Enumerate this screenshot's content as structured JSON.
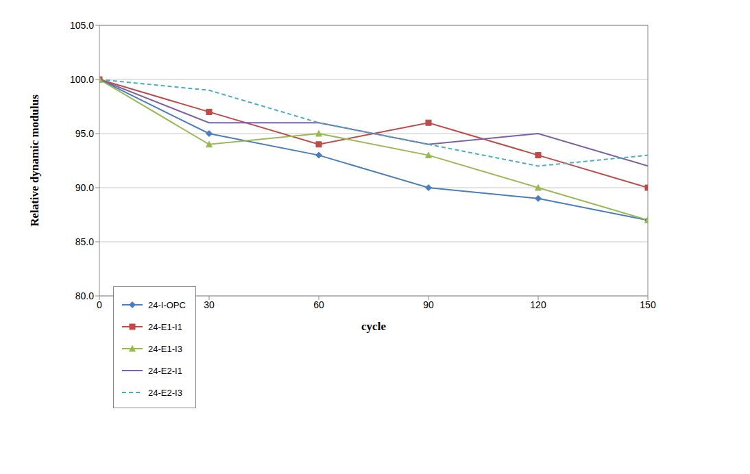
{
  "chart_data": {
    "type": "line",
    "x_label": "cycle",
    "y_label": "Relative dynamic modulus",
    "x": [
      0,
      30,
      60,
      90,
      120,
      150
    ],
    "series": [
      {
        "name": "24-I-OPC",
        "color": "#4a7ebb",
        "marker": "diamond",
        "line_style": "solid",
        "values": [
          100,
          95,
          93,
          90,
          89,
          87
        ]
      },
      {
        "name": "24-E1-I1",
        "color": "#be4b48",
        "marker": "square",
        "line_style": "solid",
        "values": [
          100,
          97,
          94,
          96,
          93,
          90
        ]
      },
      {
        "name": "24-E1-I3",
        "color": "#98b954",
        "marker": "triangle",
        "line_style": "solid",
        "values": [
          100,
          94,
          95,
          93,
          90,
          87
        ]
      },
      {
        "name": "24-E2-I1",
        "color": "#7d60a0",
        "marker": "none",
        "line_style": "solid",
        "values": [
          100,
          96,
          96,
          94,
          95,
          92
        ]
      },
      {
        "name": "24-E2-I3",
        "color": "#4bacc6",
        "marker": "none",
        "line_style": "dashed",
        "values": [
          100,
          99,
          96,
          94,
          92,
          93
        ]
      }
    ],
    "xlim": [
      0,
      150
    ],
    "xticks": [
      0,
      30,
      60,
      90,
      120,
      150
    ],
    "ylim": [
      80,
      105
    ],
    "yticks": [
      {
        "value": 80,
        "label": "80.0"
      },
      {
        "value": 85,
        "label": "85.0"
      },
      {
        "value": 90,
        "label": "90.0"
      },
      {
        "value": 95,
        "label": "95.0"
      },
      {
        "value": 100,
        "label": "100.0"
      },
      {
        "value": 105,
        "label": "105.0"
      }
    ],
    "grid": true,
    "legend": "lower left"
  }
}
